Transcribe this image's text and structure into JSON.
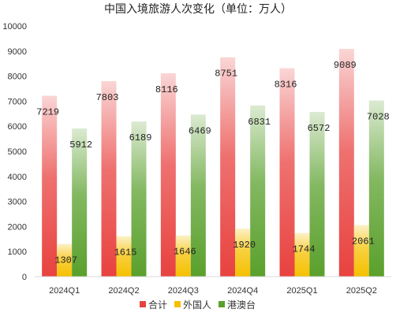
{
  "chart_data": {
    "type": "bar",
    "title": "中国入境旅游人次变化（单位：万人）",
    "xlabel": "",
    "ylabel": "",
    "categories": [
      "2024Q1",
      "2024Q2",
      "2024Q3",
      "2024Q4",
      "2025Q1",
      "2025Q2"
    ],
    "series": [
      {
        "name": "合计",
        "values": [
          7219,
          7803,
          8116,
          8751,
          8316,
          9089
        ],
        "color": "#e8423f"
      },
      {
        "name": "外国人",
        "values": [
          1307,
          1615,
          1646,
          1920,
          1744,
          2061
        ],
        "color": "#f5c000"
      },
      {
        "name": "港澳台",
        "values": [
          5912,
          6189,
          6469,
          6831,
          6572,
          7028
        ],
        "color": "#5aa02c"
      }
    ],
    "ylim": [
      0,
      10000
    ],
    "yticks": [
      0,
      1000,
      2000,
      3000,
      4000,
      5000,
      6000,
      7000,
      8000,
      9000,
      10000
    ],
    "grid": false,
    "legend_position": "bottom"
  }
}
